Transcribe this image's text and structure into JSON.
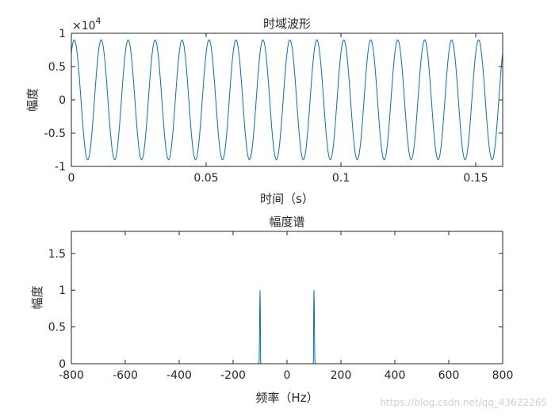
{
  "chart_data": [
    {
      "type": "line",
      "title": "时域波形",
      "xlabel": "时间（s）",
      "ylabel": "幅度",
      "xlim": [
        0,
        0.16
      ],
      "ylim": [
        -1,
        1
      ],
      "y_exponent_label": "×10",
      "y_exponent_power": "4",
      "xticks": [
        0,
        0.05,
        0.1,
        0.15
      ],
      "xtick_labels": [
        "0",
        "0.05",
        "0.1",
        "0.15"
      ],
      "yticks": [
        -1,
        -0.5,
        0,
        0.5,
        1
      ],
      "ytick_labels": [
        "-1",
        "-0.5",
        "0",
        "0.5",
        "1"
      ],
      "series": [
        {
          "color": "#0072BD",
          "amplitude": 0.9,
          "frequency_hz": 100,
          "phase_rad": 0.9
        }
      ],
      "grid": false
    },
    {
      "type": "line",
      "title": "幅度谱",
      "xlabel": "频率（Hz）",
      "ylabel": "幅度",
      "xlim": [
        -800,
        800
      ],
      "ylim": [
        0,
        1.8
      ],
      "xticks": [
        -800,
        -600,
        -400,
        -200,
        0,
        200,
        400,
        600,
        800
      ],
      "xtick_labels": [
        "-800",
        "-600",
        "-400",
        "-200",
        "0",
        "200",
        "400",
        "600",
        "800"
      ],
      "yticks": [
        0,
        0.5,
        1,
        1.5
      ],
      "ytick_labels": [
        "0",
        "0.5",
        "1",
        "1.5"
      ],
      "x": [
        -800,
        -105,
        -103,
        -101,
        -100,
        -99,
        -98,
        -96,
        96,
        98,
        99,
        100,
        101,
        103,
        105,
        800
      ],
      "y": [
        0,
        0,
        0.05,
        0.8,
        1.0,
        0.75,
        0.02,
        0,
        0,
        0.02,
        0.78,
        1.0,
        0.82,
        0.05,
        0,
        0
      ],
      "series_color": "#0072BD",
      "grid": false
    }
  ],
  "watermark": "https://blog.csdn.net/qq_43622265"
}
